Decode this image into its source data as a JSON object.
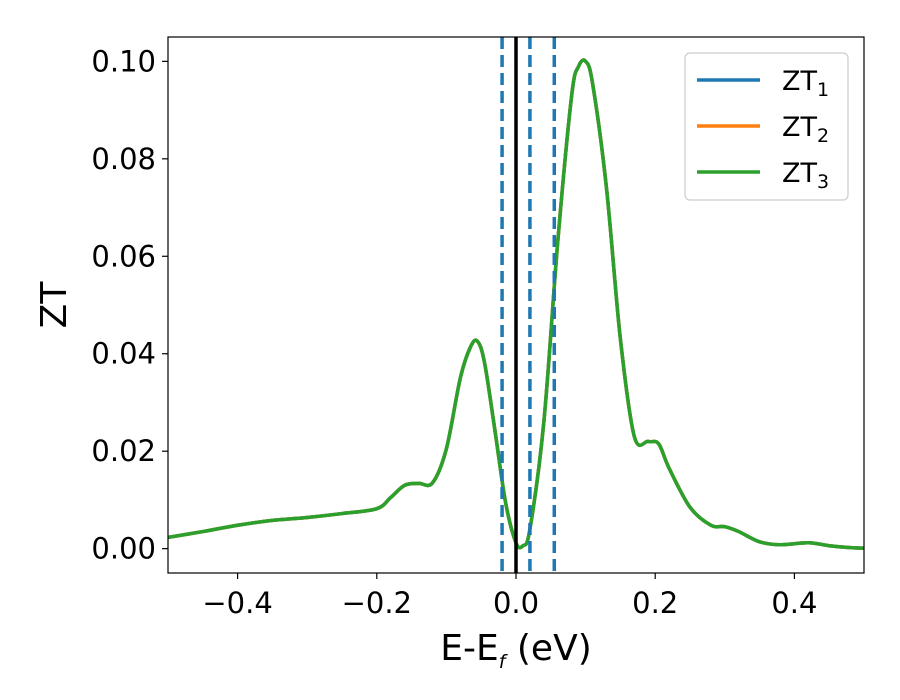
{
  "chart_data": {
    "type": "line",
    "xlabel": "E-E",
    "xlabel_sub": "f",
    "xlabel_unit": " (eV)",
    "ylabel": "ZT",
    "xlim": [
      -0.5,
      0.5
    ],
    "ylim": [
      -0.005,
      0.105
    ],
    "xticks": [
      -0.4,
      -0.2,
      0.0,
      0.2,
      0.4
    ],
    "xtick_labels": [
      "−0.4",
      "−0.2",
      "0.0",
      "0.2",
      "0.4"
    ],
    "yticks": [
      0.0,
      0.02,
      0.04,
      0.06,
      0.08,
      0.1
    ],
    "ytick_labels": [
      "0.00",
      "0.02",
      "0.04",
      "0.06",
      "0.08",
      "0.10"
    ],
    "grid": false,
    "legend_position": "top-right",
    "vlines": [
      {
        "x": 0.0,
        "color": "#000000",
        "style": "solid"
      },
      {
        "x": -0.02,
        "color": "#1f77b4",
        "style": "dashed"
      },
      {
        "x": 0.02,
        "color": "#1f77b4",
        "style": "dashed"
      },
      {
        "x": 0.055,
        "color": "#1f77b4",
        "style": "dashed"
      }
    ],
    "x": [
      -0.5,
      -0.45,
      -0.4,
      -0.35,
      -0.3,
      -0.25,
      -0.2,
      -0.18,
      -0.16,
      -0.14,
      -0.12,
      -0.1,
      -0.08,
      -0.065,
      -0.055,
      -0.045,
      -0.03,
      -0.015,
      0.0,
      0.01,
      0.02,
      0.04,
      0.06,
      0.08,
      0.09,
      0.1,
      0.11,
      0.13,
      0.15,
      0.17,
      0.19,
      0.205,
      0.22,
      0.25,
      0.28,
      0.3,
      0.32,
      0.35,
      0.38,
      0.42,
      0.45,
      0.48,
      0.5
    ],
    "series": [
      {
        "name": "ZT",
        "name_sub": "1",
        "color": "#1f77b4",
        "values": [
          0.0023,
          0.0035,
          0.0048,
          0.0058,
          0.0064,
          0.0072,
          0.0082,
          0.0105,
          0.013,
          0.0134,
          0.0135,
          0.0205,
          0.035,
          0.0415,
          0.0425,
          0.038,
          0.024,
          0.0095,
          0.0012,
          0.0006,
          0.004,
          0.026,
          0.063,
          0.093,
          0.099,
          0.1,
          0.0955,
          0.074,
          0.043,
          0.023,
          0.022,
          0.0215,
          0.0165,
          0.0085,
          0.0048,
          0.0045,
          0.0035,
          0.0014,
          0.0008,
          0.0012,
          0.0006,
          0.0002,
          0.0001
        ]
      },
      {
        "name": "ZT",
        "name_sub": "2",
        "color": "#ff7f0e",
        "values": [
          0.0023,
          0.0035,
          0.0048,
          0.0058,
          0.0064,
          0.0072,
          0.0082,
          0.0105,
          0.013,
          0.0134,
          0.0135,
          0.0205,
          0.035,
          0.0415,
          0.0425,
          0.038,
          0.024,
          0.0095,
          0.0012,
          0.0006,
          0.004,
          0.026,
          0.063,
          0.093,
          0.099,
          0.1,
          0.0955,
          0.074,
          0.043,
          0.023,
          0.022,
          0.0215,
          0.0165,
          0.0085,
          0.0048,
          0.0045,
          0.0035,
          0.0014,
          0.0008,
          0.0012,
          0.0006,
          0.0002,
          0.0001
        ]
      },
      {
        "name": "ZT",
        "name_sub": "3",
        "color": "#2ca02c",
        "values": [
          0.0023,
          0.0035,
          0.0048,
          0.0058,
          0.0064,
          0.0072,
          0.0082,
          0.0105,
          0.013,
          0.0134,
          0.0135,
          0.0205,
          0.035,
          0.0415,
          0.0425,
          0.038,
          0.024,
          0.0095,
          0.0012,
          0.0006,
          0.004,
          0.026,
          0.063,
          0.093,
          0.099,
          0.1,
          0.0955,
          0.074,
          0.043,
          0.023,
          0.022,
          0.0215,
          0.0165,
          0.0085,
          0.0048,
          0.0045,
          0.0035,
          0.0014,
          0.0008,
          0.0012,
          0.0006,
          0.0002,
          0.0001
        ]
      }
    ]
  }
}
